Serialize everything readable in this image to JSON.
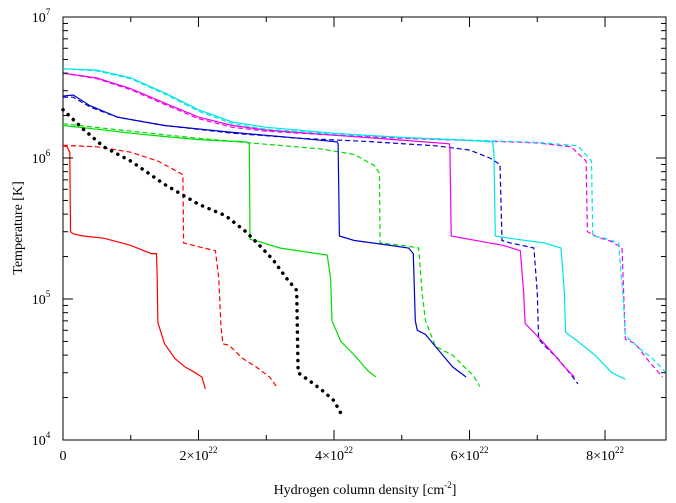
{
  "chart_data": {
    "type": "line",
    "title": "",
    "xlabel": "Hydrogen column density [cm",
    "xlabel_unit_exponent": "-2",
    "xlabel_close": "]",
    "ylabel": "Temperature [K]",
    "x_scale": "linear",
    "y_scale": "log",
    "xlim": [
      0,
      8.9e+22
    ],
    "ylim": [
      10000,
      10000000
    ],
    "grid": false,
    "legend": "none",
    "x_ticks": [
      {
        "value": 0,
        "mantissa": "0",
        "exponent": ""
      },
      {
        "value": 2e+22,
        "mantissa": "2×10",
        "exponent": "22"
      },
      {
        "value": 4e+22,
        "mantissa": "4×10",
        "exponent": "22"
      },
      {
        "value": 6e+22,
        "mantissa": "6×10",
        "exponent": "22"
      },
      {
        "value": 8e+22,
        "mantissa": "8×10",
        "exponent": "22"
      }
    ],
    "y_ticks": [
      {
        "value": 10000,
        "mantissa": "10",
        "exponent": "4"
      },
      {
        "value": 100000,
        "mantissa": "10",
        "exponent": "5"
      },
      {
        "value": 1000000,
        "mantissa": "10",
        "exponent": "6"
      },
      {
        "value": 10000000,
        "mantissa": "10",
        "exponent": "7"
      }
    ],
    "series": [
      {
        "color": "#ff0000",
        "dash": "solid",
        "points": [
          [
            0,
            1220000
          ],
          [
            6e+20,
            1200000
          ],
          [
            1e+21,
            1100000
          ],
          [
            1.1e+21,
            300000
          ],
          [
            1.5e+21,
            290000
          ],
          [
            3e+21,
            280000
          ],
          [
            6e+21,
            270000
          ],
          [
            1e+22,
            240000
          ],
          [
            1.3e+22,
            210000
          ],
          [
            1.38e+22,
            210000
          ],
          [
            1.39e+22,
            140000
          ],
          [
            1.4e+22,
            68000
          ],
          [
            1.5e+22,
            48000
          ],
          [
            1.65e+22,
            38000
          ],
          [
            1.8e+22,
            33000
          ],
          [
            1.95e+22,
            30000
          ],
          [
            2.05e+22,
            28000
          ],
          [
            2.1e+22,
            23000
          ]
        ]
      },
      {
        "color": "#ff0000",
        "dash": "dashed",
        "points": [
          [
            0,
            1230000
          ],
          [
            5e+21,
            1200000
          ],
          [
            1e+22,
            1100000
          ],
          [
            1.4e+22,
            950000
          ],
          [
            1.65e+22,
            820000
          ],
          [
            1.77e+22,
            760000
          ],
          [
            1.78e+22,
            250000
          ],
          [
            2e+22,
            235000
          ],
          [
            2.25e+22,
            220000
          ],
          [
            2.3e+22,
            140000
          ],
          [
            2.33e+22,
            65000
          ],
          [
            2.36e+22,
            48000
          ],
          [
            2.45e+22,
            47000
          ],
          [
            2.65e+22,
            38000
          ],
          [
            2.85e+22,
            33000
          ],
          [
            3.05e+22,
            28000
          ],
          [
            3.15e+22,
            24000
          ]
        ]
      },
      {
        "color": "#00dd00",
        "dash": "solid",
        "points": [
          [
            0,
            1700000
          ],
          [
            5e+21,
            1600000
          ],
          [
            1e+22,
            1500000
          ],
          [
            1.5e+22,
            1420000
          ],
          [
            2e+22,
            1350000
          ],
          [
            2.4e+22,
            1320000
          ],
          [
            2.7e+22,
            1300000
          ],
          [
            2.75e+22,
            1270000
          ],
          [
            2.76e+22,
            265000
          ],
          [
            2.9e+22,
            255000
          ],
          [
            3.2e+22,
            230000
          ],
          [
            3.6e+22,
            215000
          ],
          [
            3.9e+22,
            205000
          ],
          [
            3.95e+22,
            140000
          ],
          [
            3.97e+22,
            70000
          ],
          [
            4.1e+22,
            50000
          ],
          [
            4.3e+22,
            40000
          ],
          [
            4.5e+22,
            31000
          ],
          [
            4.62e+22,
            28000
          ]
        ]
      },
      {
        "color": "#00dd00",
        "dash": "dashed",
        "points": [
          [
            0,
            1750000
          ],
          [
            1e+22,
            1550000
          ],
          [
            2e+22,
            1380000
          ],
          [
            3e+22,
            1250000
          ],
          [
            3.8e+22,
            1160000
          ],
          [
            4.3e+22,
            1060000
          ],
          [
            4.6e+22,
            880000
          ],
          [
            4.67e+22,
            780000
          ],
          [
            4.68e+22,
            250000
          ],
          [
            5e+22,
            240000
          ],
          [
            5.25e+22,
            230000
          ],
          [
            5.3e+22,
            110000
          ],
          [
            5.35e+22,
            70000
          ],
          [
            5.5e+22,
            46000
          ],
          [
            5.75e+22,
            40000
          ],
          [
            5.95e+22,
            32000
          ],
          [
            6.05e+22,
            29000
          ],
          [
            6.15e+22,
            24000
          ]
        ]
      },
      {
        "color": "#0000cc",
        "dash": "solid",
        "points": [
          [
            0,
            2750000
          ],
          [
            1.5e+21,
            2800000
          ],
          [
            4e+21,
            2350000
          ],
          [
            8e+21,
            1950000
          ],
          [
            1.5e+22,
            1700000
          ],
          [
            2.5e+22,
            1520000
          ],
          [
            3.5e+22,
            1380000
          ],
          [
            4.05e+22,
            1300000
          ],
          [
            4.06e+22,
            1260000
          ],
          [
            4.08e+22,
            280000
          ],
          [
            4.3e+22,
            260000
          ],
          [
            4.7e+22,
            245000
          ],
          [
            5.1e+22,
            230000
          ],
          [
            5.17e+22,
            210000
          ],
          [
            5.2e+22,
            70000
          ],
          [
            5.23e+22,
            60000
          ],
          [
            5.35e+22,
            56000
          ],
          [
            5.55e+22,
            43000
          ],
          [
            5.75e+22,
            33000
          ],
          [
            5.95e+22,
            28000
          ]
        ]
      },
      {
        "color": "#0000cc",
        "dash": "dashed",
        "points": [
          [
            0,
            2700000
          ],
          [
            1.5e+21,
            2700000
          ],
          [
            4e+21,
            2300000
          ],
          [
            8e+21,
            1950000
          ],
          [
            1.5e+22,
            1700000
          ],
          [
            2.5e+22,
            1500000
          ],
          [
            3.5e+22,
            1380000
          ],
          [
            4.5e+22,
            1310000
          ],
          [
            5.5e+22,
            1220000
          ],
          [
            6e+22,
            1140000
          ],
          [
            6.3e+22,
            1000000
          ],
          [
            6.45e+22,
            900000
          ],
          [
            6.48e+22,
            260000
          ],
          [
            6.6e+22,
            250000
          ],
          [
            6.95e+22,
            230000
          ],
          [
            7e+22,
            110000
          ],
          [
            7.02e+22,
            52000
          ],
          [
            7.1e+22,
            47000
          ],
          [
            7.3e+22,
            38000
          ],
          [
            7.5e+22,
            29000
          ],
          [
            7.6e+22,
            25000
          ]
        ]
      },
      {
        "color": "#ee00ee",
        "dash": "solid",
        "points": [
          [
            0,
            4000000
          ],
          [
            5e+21,
            3700000
          ],
          [
            1e+22,
            3100000
          ],
          [
            1.5e+22,
            2450000
          ],
          [
            2e+22,
            1950000
          ],
          [
            2.5e+22,
            1700000
          ],
          [
            3e+22,
            1580000
          ],
          [
            4e+22,
            1450000
          ],
          [
            5e+22,
            1340000
          ],
          [
            5.7e+22,
            1260000
          ],
          [
            5.71e+22,
            1200000
          ],
          [
            5.73e+22,
            280000
          ],
          [
            6e+22,
            265000
          ],
          [
            6.5e+22,
            240000
          ],
          [
            6.75e+22,
            220000
          ],
          [
            6.8e+22,
            110000
          ],
          [
            6.82e+22,
            67000
          ],
          [
            6.95e+22,
            58000
          ],
          [
            7.2e+22,
            43000
          ],
          [
            7.4e+22,
            33000
          ],
          [
            7.55e+22,
            28000
          ]
        ]
      },
      {
        "color": "#ee00ee",
        "dash": "dashed",
        "points": [
          [
            0,
            4000000
          ],
          [
            5e+21,
            3650000
          ],
          [
            1e+22,
            3050000
          ],
          [
            1.5e+22,
            2400000
          ],
          [
            2e+22,
            1900000
          ],
          [
            2.5e+22,
            1650000
          ],
          [
            3e+22,
            1550000
          ],
          [
            4e+22,
            1450000
          ],
          [
            5e+22,
            1380000
          ],
          [
            6e+22,
            1330000
          ],
          [
            7e+22,
            1280000
          ],
          [
            7.5e+22,
            1200000
          ],
          [
            7.72e+22,
            950000
          ],
          [
            7.74e+22,
            300000
          ],
          [
            7.85e+22,
            280000
          ],
          [
            8.1e+22,
            255000
          ],
          [
            8.25e+22,
            230000
          ],
          [
            8.28e+22,
            95000
          ],
          [
            8.3e+22,
            52000
          ],
          [
            8.45e+22,
            48000
          ],
          [
            8.65e+22,
            36000
          ],
          [
            8.85e+22,
            28000
          ]
        ]
      },
      {
        "color": "#00e6e6",
        "dash": "solid",
        "points": [
          [
            0,
            4300000
          ],
          [
            5e+21,
            4200000
          ],
          [
            1e+22,
            3700000
          ],
          [
            1.5e+22,
            2900000
          ],
          [
            2e+22,
            2200000
          ],
          [
            2.5e+22,
            1800000
          ],
          [
            3e+22,
            1650000
          ],
          [
            4e+22,
            1500000
          ],
          [
            5e+22,
            1400000
          ],
          [
            6e+22,
            1330000
          ],
          [
            6.34e+22,
            1300000
          ],
          [
            6.36e+22,
            1100000
          ],
          [
            6.38e+22,
            280000
          ],
          [
            6.7e+22,
            265000
          ],
          [
            7.1e+22,
            250000
          ],
          [
            7.35e+22,
            230000
          ],
          [
            7.4e+22,
            110000
          ],
          [
            7.42e+22,
            58000
          ],
          [
            7.6e+22,
            50000
          ],
          [
            7.85e+22,
            40000
          ],
          [
            8.1e+22,
            30000
          ],
          [
            8.3e+22,
            27000
          ]
        ]
      },
      {
        "color": "#00e6e6",
        "dash": "dashed",
        "points": [
          [
            0,
            4300000
          ],
          [
            5e+21,
            4150000
          ],
          [
            1e+22,
            3650000
          ],
          [
            1.5e+22,
            2850000
          ],
          [
            2e+22,
            2150000
          ],
          [
            2.5e+22,
            1750000
          ],
          [
            3e+22,
            1600000
          ],
          [
            4e+22,
            1480000
          ],
          [
            5e+22,
            1400000
          ],
          [
            6e+22,
            1340000
          ],
          [
            7e+22,
            1290000
          ],
          [
            7.6e+22,
            1220000
          ],
          [
            7.8e+22,
            950000
          ],
          [
            7.82e+22,
            280000
          ],
          [
            8e+22,
            270000
          ],
          [
            8.2e+22,
            250000
          ],
          [
            8.27e+22,
            100000
          ],
          [
            8.3e+22,
            55000
          ],
          [
            8.5e+22,
            45000
          ],
          [
            8.7e+22,
            38000
          ],
          [
            8.9e+22,
            30000
          ]
        ]
      },
      {
        "color": "#000000",
        "dash": "dotted",
        "points": [
          [
            0,
            2200000
          ],
          [
            3e+21,
            1600000
          ],
          [
            6e+21,
            1200000
          ],
          [
            1e+22,
            950000
          ],
          [
            1.5e+22,
            650000
          ],
          [
            2e+22,
            470000
          ],
          [
            2.4e+22,
            390000
          ],
          [
            2.7e+22,
            300000
          ],
          [
            2.9e+22,
            240000
          ],
          [
            3.1e+22,
            190000
          ],
          [
            3.3e+22,
            140000
          ],
          [
            3.45e+22,
            115000
          ],
          [
            3.47e+22,
            30000
          ],
          [
            3.7e+22,
            25000
          ],
          [
            3.85e+22,
            22000
          ],
          [
            4e+22,
            19000
          ],
          [
            4.1e+22,
            15500
          ]
        ]
      }
    ]
  }
}
